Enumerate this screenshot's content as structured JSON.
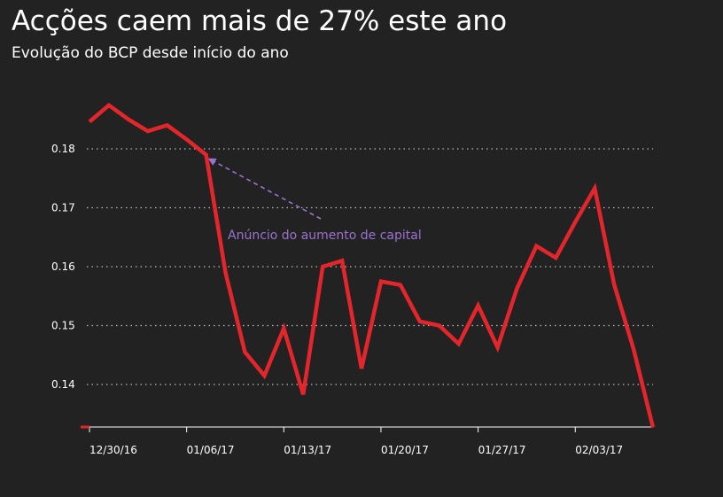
{
  "chart_data": {
    "type": "line",
    "title": "Acções caem mais de 27% este ano",
    "subtitle": "Evolução do BCP desde início do ano",
    "xlabel": "",
    "ylabel": "",
    "ylim": [
      0.1327,
      0.19
    ],
    "y_ticks": [
      "0.14",
      "0.15",
      "0.16",
      "0.17",
      "0.18"
    ],
    "x_ticks": [
      "12/30/16",
      "01/06/17",
      "01/13/17",
      "01/20/17",
      "01/27/17",
      "02/03/17"
    ],
    "x_tick_index": [
      0,
      5,
      10,
      15,
      20,
      25
    ],
    "grid": true,
    "line_color": "#e3262b",
    "annotation": {
      "text": "Anúncio do aumento de capital",
      "color": "#9b72cf",
      "target_index": 6
    },
    "series": [
      {
        "values": [
          0.1846,
          0.1874,
          0.185,
          0.183,
          0.184,
          0.1816,
          0.179,
          0.159,
          0.1455,
          0.1415,
          0.1495,
          0.1383,
          0.16,
          0.161,
          0.1427,
          0.1575,
          0.1569,
          0.1507,
          0.15,
          0.1469,
          0.1534,
          0.1463,
          0.1563,
          0.1635,
          0.1615,
          0.1676,
          0.1733,
          0.157,
          0.146,
          0.1327
        ]
      }
    ]
  }
}
